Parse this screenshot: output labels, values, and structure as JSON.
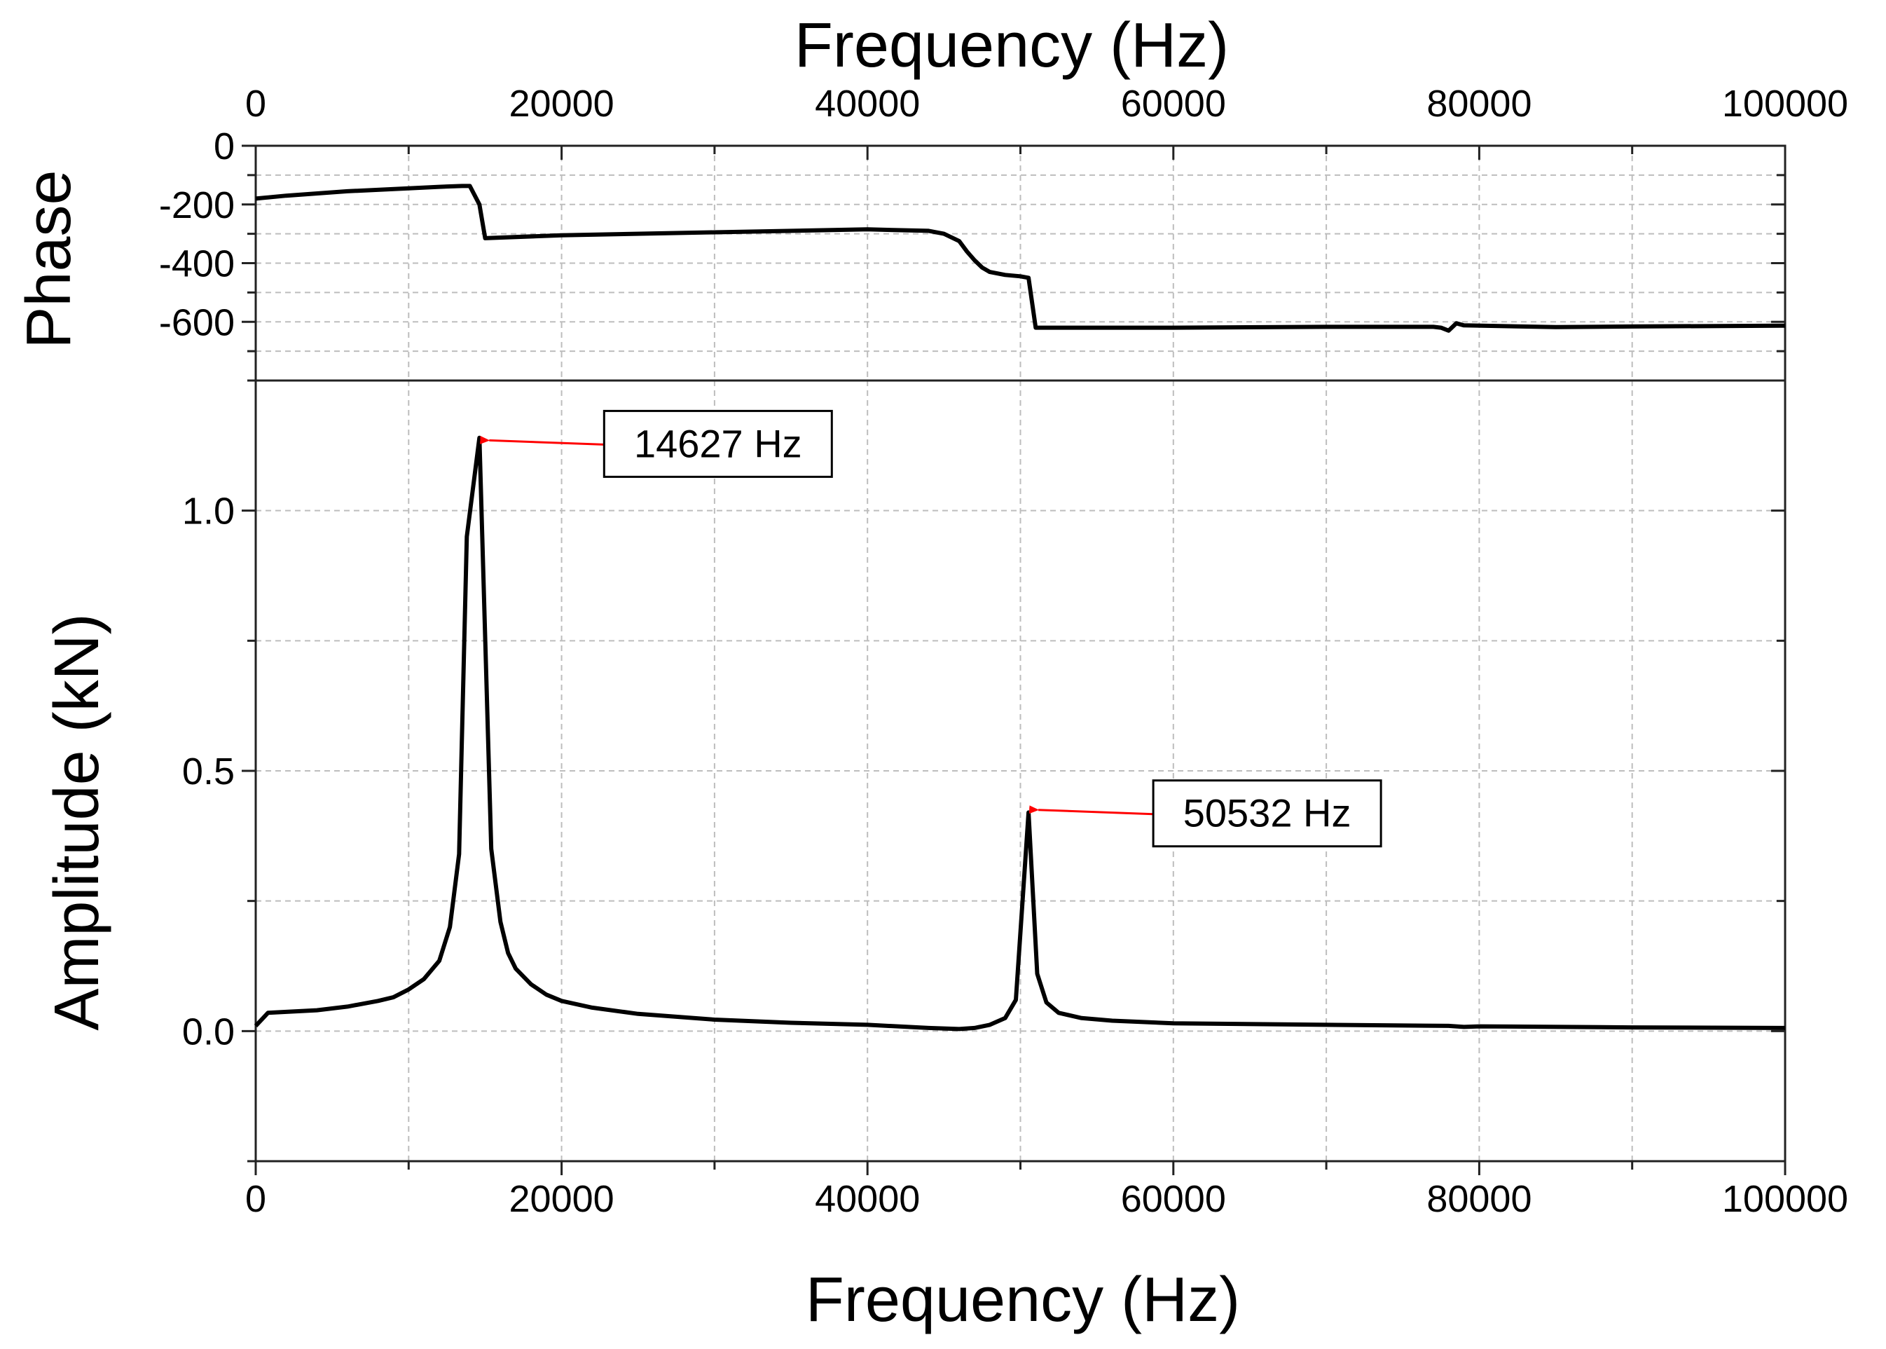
{
  "chart_data": [
    {
      "type": "line",
      "panel": "phase",
      "title": "",
      "xlabel": "Frequency (Hz)",
      "ylabel": "Phase",
      "xlim": [
        0,
        100000
      ],
      "ylim": [
        -800,
        0
      ],
      "x_ticks": [
        0,
        20000,
        40000,
        60000,
        80000,
        100000
      ],
      "x_tick_labels": [
        "0",
        "20000",
        "40000",
        "60000",
        "80000",
        "100000"
      ],
      "y_ticks": [
        0,
        -200,
        -400,
        -600
      ],
      "y_tick_labels": [
        "0",
        "-200",
        "-400",
        "-600"
      ],
      "x_axis_position": "top",
      "grid": true,
      "line_color": "#000000",
      "series": [
        {
          "x": [
            0,
            2000,
            6000,
            10000,
            12000,
            13500,
            14000,
            14627,
            15000,
            20000,
            30000,
            40000,
            44000,
            45000,
            46000,
            46500,
            47000,
            47500,
            48000,
            49000,
            50000,
            50532,
            51000,
            60000,
            70000,
            77000,
            77500,
            78000,
            78500,
            79000,
            85000,
            90000,
            100000
          ],
          "y": [
            -180,
            -170,
            -155,
            -145,
            -140,
            -137,
            -137,
            -200,
            -315,
            -305,
            -295,
            -285,
            -290,
            -300,
            -325,
            -360,
            -390,
            -415,
            -430,
            -440,
            -445,
            -450,
            -620,
            -620,
            -617,
            -617,
            -620,
            -630,
            -605,
            -612,
            -618,
            -616,
            -613
          ]
        }
      ]
    },
    {
      "type": "line",
      "panel": "amplitude",
      "title": "",
      "xlabel": "Frequency (Hz)",
      "ylabel": "Amplitude (kN)",
      "xlim": [
        0,
        100000
      ],
      "ylim": [
        -0.25,
        1.25
      ],
      "x_ticks": [
        0,
        20000,
        40000,
        60000,
        80000,
        100000
      ],
      "x_tick_labels": [
        "0",
        "20000",
        "40000",
        "60000",
        "80000",
        "100000"
      ],
      "y_ticks": [
        0.0,
        0.5,
        1.0
      ],
      "y_tick_labels": [
        "0.0",
        "0.5",
        "1.0"
      ],
      "x_axis_position": "bottom",
      "grid": true,
      "line_color": "#000000",
      "series": [
        {
          "x": [
            0,
            800,
            2000,
            4000,
            6000,
            8000,
            9000,
            10000,
            11000,
            12000,
            12700,
            13300,
            13800,
            14627,
            15400,
            16000,
            16500,
            17000,
            18000,
            19000,
            20000,
            22000,
            25000,
            30000,
            35000,
            40000,
            44000,
            46000,
            47000,
            48000,
            49000,
            49700,
            50532,
            51100,
            51700,
            52500,
            54000,
            56000,
            60000,
            70000,
            78000,
            79000,
            80000,
            90000,
            100000
          ],
          "y": [
            0.01,
            0.035,
            0.037,
            0.04,
            0.047,
            0.058,
            0.065,
            0.08,
            0.1,
            0.135,
            0.2,
            0.34,
            0.95,
            1.14,
            0.35,
            0.21,
            0.15,
            0.12,
            0.09,
            0.07,
            0.058,
            0.045,
            0.033,
            0.022,
            0.016,
            0.012,
            0.006,
            0.004,
            0.006,
            0.012,
            0.025,
            0.06,
            0.42,
            0.11,
            0.055,
            0.035,
            0.025,
            0.02,
            0.015,
            0.012,
            0.01,
            0.008,
            0.009,
            0.007,
            0.006
          ]
        }
      ],
      "annotations": [
        {
          "text": "14627 Hz",
          "x": 14627,
          "y": 1.135,
          "arrow_color": "#ff0000"
        },
        {
          "text": "50532 Hz",
          "x": 50532,
          "y": 0.425,
          "arrow_color": "#ff0000"
        }
      ]
    }
  ]
}
